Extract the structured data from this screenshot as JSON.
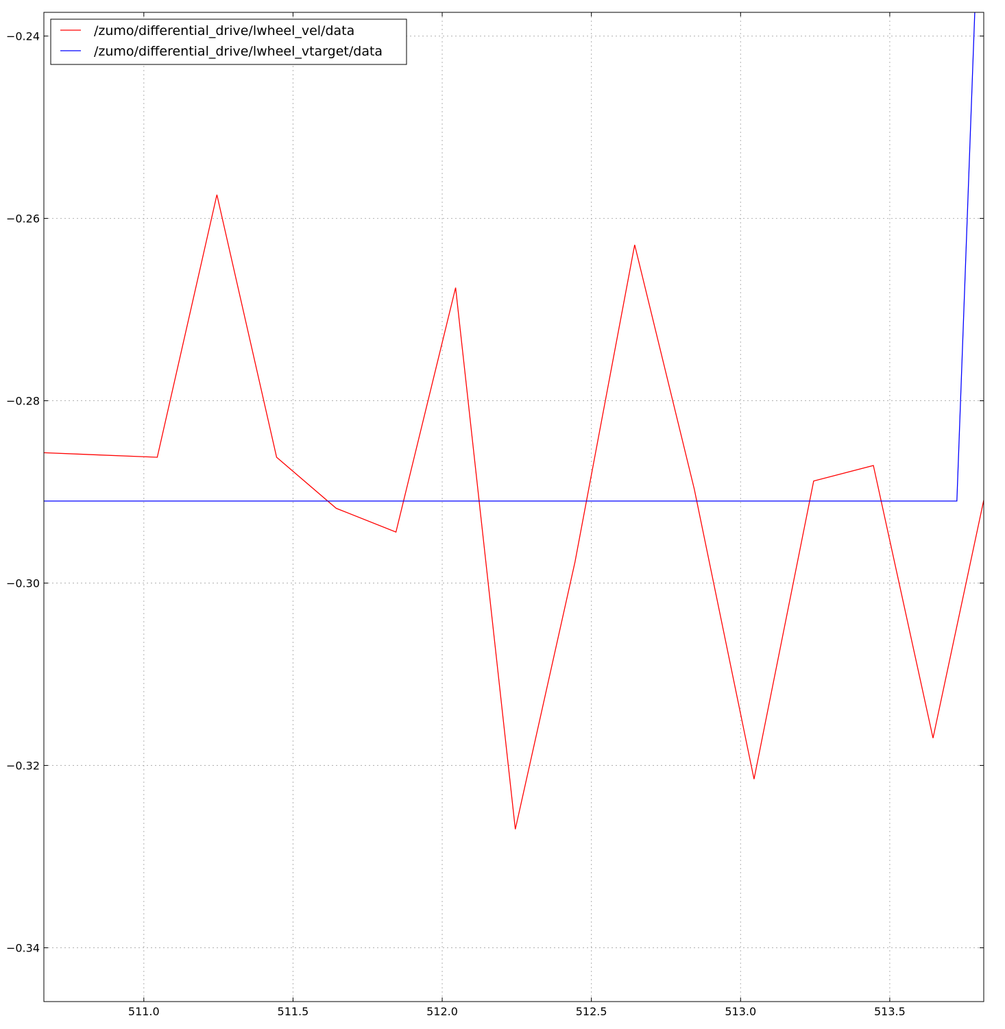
{
  "chart_data": {
    "type": "line",
    "title": "",
    "xlabel": "",
    "ylabel": "",
    "xlim": [
      510.665,
      513.815
    ],
    "ylim": [
      -0.3459,
      -0.2374
    ],
    "xticks": [
      511.0,
      511.5,
      512.0,
      512.5,
      513.0,
      513.5
    ],
    "xtick_labels": [
      "511.0",
      "511.5",
      "512.0",
      "512.5",
      "513.0",
      "513.5"
    ],
    "yticks": [
      -0.24,
      -0.26,
      -0.28,
      -0.3,
      -0.32,
      -0.34
    ],
    "ytick_labels": [
      "−0.24",
      "−0.26",
      "−0.28",
      "−0.30",
      "−0.32",
      "−0.34"
    ],
    "grid": true,
    "legend_position": "top-left",
    "series": [
      {
        "name": "/zumo/differential_drive/lwheel_vel/data",
        "color": "#ff0000",
        "x": [
          510.665,
          511.045,
          511.245,
          511.445,
          511.645,
          511.845,
          512.045,
          512.245,
          512.445,
          512.645,
          512.845,
          513.045,
          513.245,
          513.445,
          513.645,
          513.815
        ],
        "y": [
          -0.2857,
          -0.2862,
          -0.2574,
          -0.2862,
          -0.2918,
          -0.2944,
          -0.2676,
          -0.327,
          -0.2977,
          -0.2629,
          -0.2897,
          -0.3215,
          -0.2888,
          -0.2871,
          -0.317,
          -0.2909
        ]
      },
      {
        "name": "/zumo/differential_drive/lwheel_vtarget/data",
        "color": "#0000ff",
        "x": [
          510.665,
          513.725,
          513.785
        ],
        "y": [
          -0.291,
          -0.291,
          -0.2374
        ]
      }
    ]
  }
}
